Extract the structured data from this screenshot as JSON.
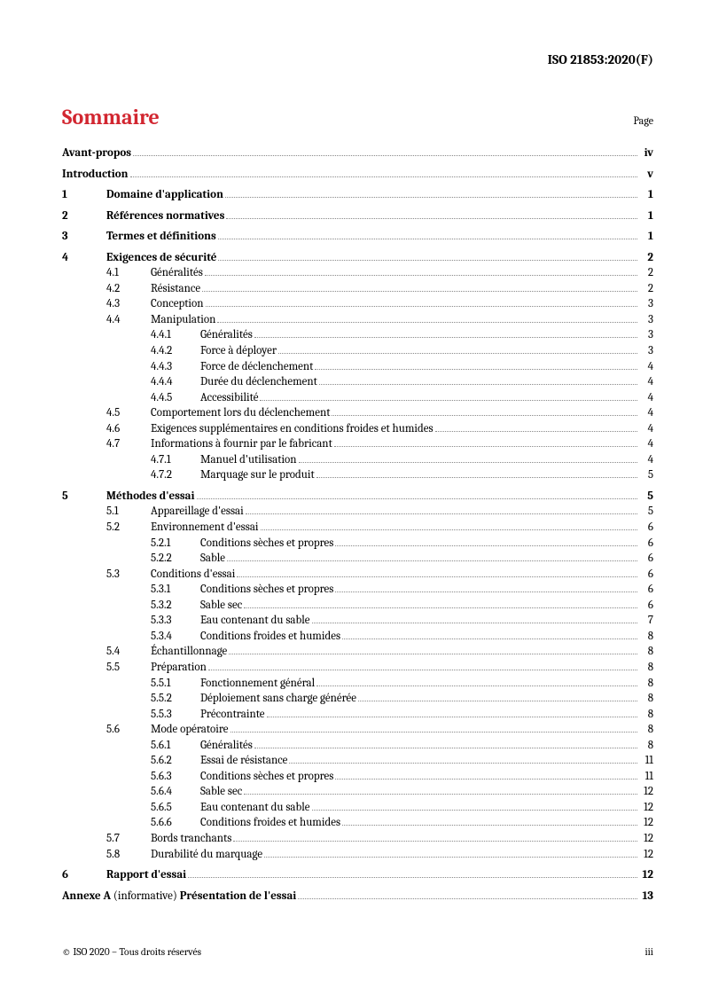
{
  "document_id": "ISO 21853:2020(F)",
  "toc_title": "Sommaire",
  "page_label": "Page",
  "footer_left": "© ISO 2020 – Tous droits réservés",
  "footer_right": "iii",
  "entries": [
    {
      "level": 0,
      "num": "",
      "title": "Avant-propos",
      "page": "iv",
      "bold": true,
      "spacer_before": false
    },
    {
      "level": 0,
      "num": "",
      "title": "Introduction",
      "page": "v",
      "bold": true,
      "spacer_before": true
    },
    {
      "level": 1,
      "num": "1",
      "title": "Domaine d'application",
      "page": "1",
      "bold": true,
      "spacer_before": true
    },
    {
      "level": 1,
      "num": "2",
      "title": "Références normatives",
      "page": "1",
      "bold": true,
      "spacer_before": true
    },
    {
      "level": 1,
      "num": "3",
      "title": "Termes et définitions",
      "page": "1",
      "bold": true,
      "spacer_before": true
    },
    {
      "level": 1,
      "num": "4",
      "title": "Exigences de sécurité",
      "page": "2",
      "bold": true,
      "spacer_before": true
    },
    {
      "level": 2,
      "num": "4.1",
      "title": "Généralités",
      "page": "2",
      "bold": false
    },
    {
      "level": 2,
      "num": "4.2",
      "title": "Résistance",
      "page": "2",
      "bold": false
    },
    {
      "level": 2,
      "num": "4.3",
      "title": "Conception",
      "page": "3",
      "bold": false
    },
    {
      "level": 2,
      "num": "4.4",
      "title": "Manipulation",
      "page": "3",
      "bold": false
    },
    {
      "level": 3,
      "num": "4.4.1",
      "title": "Généralités",
      "page": "3",
      "bold": false
    },
    {
      "level": 3,
      "num": "4.4.2",
      "title": "Force à déployer",
      "page": "3",
      "bold": false
    },
    {
      "level": 3,
      "num": "4.4.3",
      "title": "Force de déclenchement",
      "page": "4",
      "bold": false
    },
    {
      "level": 3,
      "num": "4.4.4",
      "title": "Durée du déclenchement",
      "page": "4",
      "bold": false
    },
    {
      "level": 3,
      "num": "4.4.5",
      "title": "Accessibilité",
      "page": "4",
      "bold": false
    },
    {
      "level": 2,
      "num": "4.5",
      "title": "Comportement lors du déclenchement",
      "page": "4",
      "bold": false
    },
    {
      "level": 2,
      "num": "4.6",
      "title": "Exigences supplémentaires en conditions froides et humides",
      "page": "4",
      "bold": false
    },
    {
      "level": 2,
      "num": "4.7",
      "title": "Informations à fournir par le fabricant",
      "page": "4",
      "bold": false
    },
    {
      "level": 3,
      "num": "4.7.1",
      "title": "Manuel d'utilisation",
      "page": "4",
      "bold": false
    },
    {
      "level": 3,
      "num": "4.7.2",
      "title": "Marquage sur le produit",
      "page": "5",
      "bold": false
    },
    {
      "level": 1,
      "num": "5",
      "title": "Méthodes d'essai",
      "page": "5",
      "bold": true,
      "spacer_before": true
    },
    {
      "level": 2,
      "num": "5.1",
      "title": "Appareillage d'essai",
      "page": "5",
      "bold": false
    },
    {
      "level": 2,
      "num": "5.2",
      "title": "Environnement d'essai",
      "page": "6",
      "bold": false
    },
    {
      "level": 3,
      "num": "5.2.1",
      "title": "Conditions sèches et propres",
      "page": "6",
      "bold": false
    },
    {
      "level": 3,
      "num": "5.2.2",
      "title": "Sable",
      "page": "6",
      "bold": false
    },
    {
      "level": 2,
      "num": "5.3",
      "title": "Conditions d'essai",
      "page": "6",
      "bold": false
    },
    {
      "level": 3,
      "num": "5.3.1",
      "title": "Conditions sèches et propres",
      "page": "6",
      "bold": false
    },
    {
      "level": 3,
      "num": "5.3.2",
      "title": "Sable sec",
      "page": "6",
      "bold": false
    },
    {
      "level": 3,
      "num": "5.3.3",
      "title": "Eau contenant du sable",
      "page": "7",
      "bold": false
    },
    {
      "level": 3,
      "num": "5.3.4",
      "title": "Conditions froides et humides",
      "page": "8",
      "bold": false
    },
    {
      "level": 2,
      "num": "5.4",
      "title": "Échantillonnage",
      "page": "8",
      "bold": false
    },
    {
      "level": 2,
      "num": "5.5",
      "title": "Préparation",
      "page": "8",
      "bold": false
    },
    {
      "level": 3,
      "num": "5.5.1",
      "title": "Fonctionnement général",
      "page": "8",
      "bold": false
    },
    {
      "level": 3,
      "num": "5.5.2",
      "title": "Déploiement sans charge générée",
      "page": "8",
      "bold": false
    },
    {
      "level": 3,
      "num": "5.5.3",
      "title": "Précontrainte",
      "page": "8",
      "bold": false
    },
    {
      "level": 2,
      "num": "5.6",
      "title": "Mode opératoire",
      "page": "8",
      "bold": false
    },
    {
      "level": 3,
      "num": "5.6.1",
      "title": "Généralités",
      "page": "8",
      "bold": false
    },
    {
      "level": 3,
      "num": "5.6.2",
      "title": "Essai de résistance",
      "page": "11",
      "bold": false
    },
    {
      "level": 3,
      "num": "5.6.3",
      "title": "Conditions sèches et propres",
      "page": "11",
      "bold": false
    },
    {
      "level": 3,
      "num": "5.6.4",
      "title": "Sable sec",
      "page": "12",
      "bold": false
    },
    {
      "level": 3,
      "num": "5.6.5",
      "title": "Eau contenant du sable",
      "page": "12",
      "bold": false
    },
    {
      "level": 3,
      "num": "5.6.6",
      "title": "Conditions froides et humides",
      "page": "12",
      "bold": false
    },
    {
      "level": 2,
      "num": "5.7",
      "title": "Bords tranchants",
      "page": "12",
      "bold": false
    },
    {
      "level": 2,
      "num": "5.8",
      "title": "Durabilité du marquage",
      "page": "12",
      "bold": false
    },
    {
      "level": 1,
      "num": "6",
      "title": "Rapport d'essai",
      "page": "12",
      "bold": true,
      "spacer_before": true
    }
  ],
  "annex": {
    "prefix": "Annexe A",
    "qualifier": "(informative)",
    "title": "Présentation de l'essai",
    "page": "13"
  }
}
